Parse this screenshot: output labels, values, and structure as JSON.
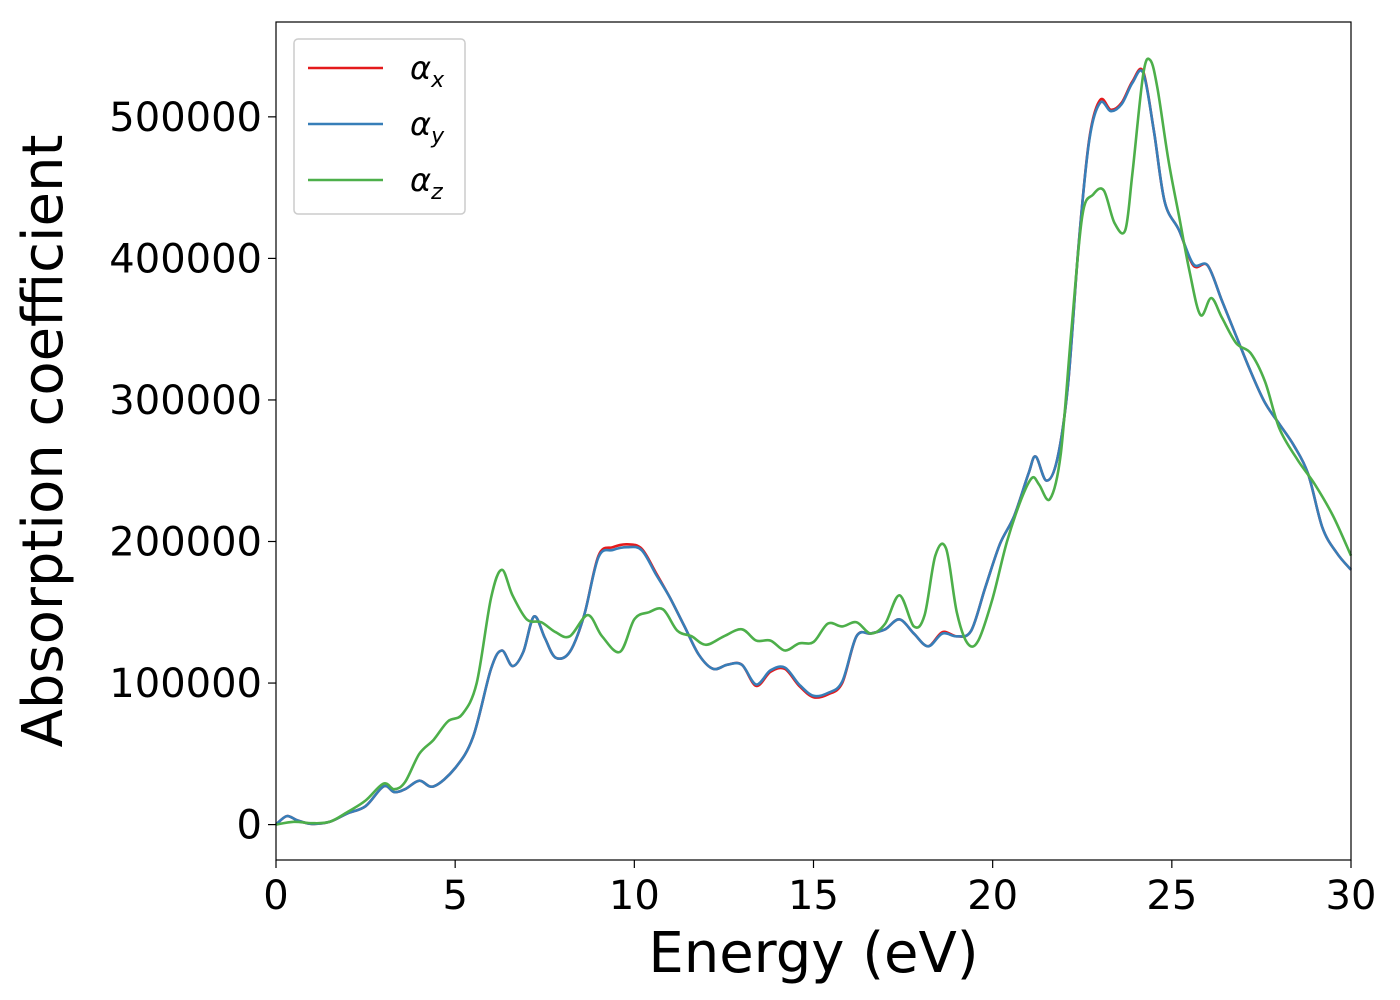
{
  "chart_data": {
    "type": "line",
    "xlabel": "Energy (eV)",
    "ylabel": "Absorption coefficient",
    "xlim": [
      0,
      30
    ],
    "ylim": [
      -25000,
      567000
    ],
    "xticks": [
      0,
      5,
      10,
      15,
      20,
      25,
      30
    ],
    "yticks": [
      0,
      100000,
      200000,
      300000,
      400000,
      500000
    ],
    "xtick_labels": [
      "0",
      "5",
      "10",
      "15",
      "20",
      "25",
      "30"
    ],
    "ytick_labels": [
      "0",
      "100000",
      "200000",
      "300000",
      "400000",
      "500000"
    ],
    "grid": false,
    "legend_position": "top-left",
    "series": [
      {
        "name": "α_x",
        "legend_symbol": "α",
        "legend_sub": "x",
        "color": "#e41a1c",
        "x": [
          0,
          0.3,
          0.6,
          1.0,
          1.5,
          2.0,
          2.5,
          3.0,
          3.3,
          3.6,
          4.0,
          4.4,
          5.0,
          5.5,
          6.0,
          6.3,
          6.6,
          6.9,
          7.2,
          7.5,
          7.8,
          8.2,
          8.6,
          9.0,
          9.4,
          9.8,
          10.2,
          10.6,
          11.0,
          11.4,
          11.8,
          12.2,
          12.6,
          13.0,
          13.4,
          13.8,
          14.2,
          14.6,
          15.0,
          15.4,
          15.8,
          16.2,
          16.6,
          17.0,
          17.4,
          17.8,
          18.2,
          18.6,
          19.0,
          19.4,
          19.8,
          20.2,
          20.6,
          21.0,
          21.2,
          21.5,
          21.8,
          22.1,
          22.4,
          22.7,
          23.0,
          23.3,
          23.6,
          23.9,
          24.2,
          24.5,
          24.8,
          25.2,
          25.6,
          26.0,
          26.4,
          26.8,
          27.2,
          27.6,
          28.0,
          28.4,
          28.8,
          29.2,
          29.6,
          30.0
        ],
        "values": [
          0,
          6000,
          3000,
          500,
          2000,
          8000,
          13000,
          27000,
          23000,
          25000,
          31000,
          27000,
          40000,
          62000,
          110000,
          123000,
          112000,
          122000,
          147000,
          132000,
          118000,
          122000,
          148000,
          190000,
          196000,
          198000,
          195000,
          178000,
          160000,
          140000,
          120000,
          110000,
          113000,
          113000,
          98000,
          108000,
          110000,
          98000,
          90000,
          92000,
          100000,
          133000,
          135000,
          138000,
          145000,
          135000,
          126000,
          136000,
          133000,
          137000,
          168000,
          198000,
          218000,
          248000,
          260000,
          243000,
          258000,
          310000,
          410000,
          485000,
          512000,
          505000,
          510000,
          525000,
          532000,
          490000,
          440000,
          420000,
          395000,
          395000,
          370000,
          345000,
          320000,
          298000,
          283000,
          268000,
          248000,
          210000,
          192000,
          180000
        ]
      },
      {
        "name": "α_y",
        "legend_symbol": "α",
        "legend_sub": "y",
        "color": "#377eb8",
        "x": [
          0,
          0.3,
          0.6,
          1.0,
          1.5,
          2.0,
          2.5,
          3.0,
          3.3,
          3.6,
          4.0,
          4.4,
          5.0,
          5.5,
          6.0,
          6.3,
          6.6,
          6.9,
          7.2,
          7.5,
          7.8,
          8.2,
          8.6,
          9.0,
          9.4,
          9.8,
          10.2,
          10.6,
          11.0,
          11.4,
          11.8,
          12.2,
          12.6,
          13.0,
          13.4,
          13.8,
          14.2,
          14.6,
          15.0,
          15.4,
          15.8,
          16.2,
          16.6,
          17.0,
          17.4,
          17.8,
          18.2,
          18.6,
          19.0,
          19.4,
          19.8,
          20.2,
          20.6,
          21.0,
          21.2,
          21.5,
          21.8,
          22.1,
          22.4,
          22.7,
          23.0,
          23.3,
          23.6,
          23.9,
          24.2,
          24.5,
          24.8,
          25.2,
          25.6,
          26.0,
          26.4,
          26.8,
          27.2,
          27.6,
          28.0,
          28.4,
          28.8,
          29.2,
          29.6,
          30.0
        ],
        "values": [
          0,
          6000,
          3000,
          500,
          2000,
          8000,
          13000,
          27000,
          23000,
          25000,
          31000,
          27000,
          40000,
          62000,
          110000,
          123000,
          112000,
          122000,
          147000,
          132000,
          118000,
          122000,
          148000,
          189000,
          194000,
          196000,
          194000,
          177000,
          160000,
          140000,
          120000,
          110000,
          113000,
          113000,
          99000,
          109000,
          111000,
          99000,
          91000,
          93000,
          101000,
          133000,
          135000,
          138000,
          145000,
          135000,
          126000,
          135000,
          133000,
          137000,
          168000,
          198000,
          218000,
          248000,
          260000,
          243000,
          258000,
          310000,
          410000,
          484000,
          510000,
          504000,
          509000,
          524000,
          531000,
          490000,
          440000,
          420000,
          396000,
          395000,
          370000,
          345000,
          320000,
          298000,
          283000,
          268000,
          248000,
          210000,
          192000,
          180000
        ]
      },
      {
        "name": "α_z",
        "legend_symbol": "α",
        "legend_sub": "z",
        "color": "#4daf4a",
        "x": [
          0,
          0.5,
          1.0,
          1.5,
          2.0,
          2.5,
          3.0,
          3.3,
          3.6,
          4.0,
          4.4,
          4.8,
          5.2,
          5.6,
          6.0,
          6.3,
          6.6,
          7.0,
          7.4,
          7.8,
          8.2,
          8.7,
          9.1,
          9.6,
          10.0,
          10.4,
          10.8,
          11.2,
          11.6,
          12.0,
          12.5,
          13.0,
          13.4,
          13.8,
          14.2,
          14.6,
          15.0,
          15.4,
          15.8,
          16.2,
          16.6,
          17.0,
          17.4,
          17.8,
          18.1,
          18.4,
          18.7,
          19.0,
          19.3,
          19.6,
          20.0,
          20.4,
          20.8,
          21.1,
          21.3,
          21.6,
          21.9,
          22.2,
          22.5,
          22.8,
          23.1,
          23.4,
          23.7,
          23.9,
          24.2,
          24.4,
          24.6,
          24.9,
          25.2,
          25.5,
          25.8,
          26.1,
          26.4,
          26.8,
          27.2,
          27.6,
          28.0,
          28.5,
          29.0,
          29.5,
          30.0
        ],
        "values": [
          0,
          2000,
          1000,
          2000,
          9000,
          17000,
          29000,
          25000,
          30000,
          50000,
          60000,
          73000,
          78000,
          100000,
          160000,
          180000,
          162000,
          145000,
          143000,
          136000,
          133000,
          148000,
          133000,
          122000,
          145000,
          150000,
          152000,
          137000,
          133000,
          127000,
          133000,
          138000,
          130000,
          130000,
          123000,
          128000,
          129000,
          142000,
          140000,
          143000,
          135000,
          142000,
          162000,
          140000,
          148000,
          190000,
          195000,
          150000,
          128000,
          130000,
          160000,
          200000,
          230000,
          245000,
          240000,
          230000,
          262000,
          350000,
          430000,
          445000,
          448000,
          425000,
          420000,
          460000,
          530000,
          540000,
          520000,
          470000,
          430000,
          390000,
          360000,
          372000,
          358000,
          340000,
          333000,
          313000,
          280000,
          258000,
          240000,
          218000,
          190000
        ]
      }
    ]
  }
}
